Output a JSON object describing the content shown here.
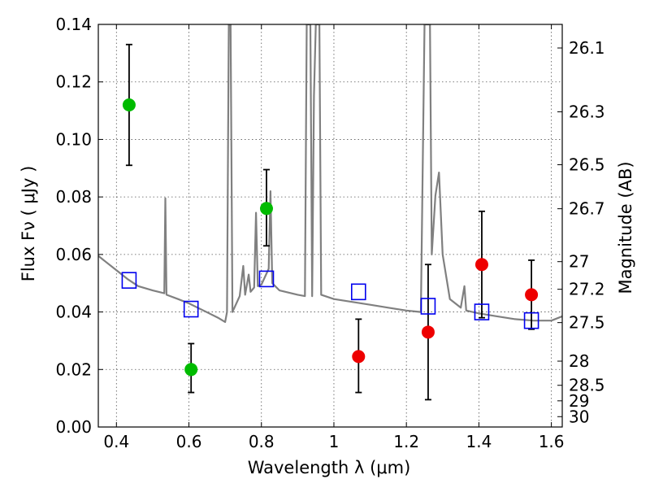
{
  "chart_data": {
    "type": "scatter",
    "xlabel": "Wavelength  λ (μm)",
    "ylabel": "Flux  Fν  ( μJy )",
    "ylabel_right": "Magnitude (AB)",
    "xlim": [
      0.35,
      1.63
    ],
    "ylim": [
      0.0,
      0.14
    ],
    "grid": true,
    "x_ticks": [
      0.4,
      0.6,
      0.8,
      1.0,
      1.2,
      1.4,
      1.6
    ],
    "x_tick_labels": [
      "0.4",
      "0.6",
      "0.8",
      "1",
      "1.2",
      "1.4",
      "1.6"
    ],
    "y_ticks": [
      0.0,
      0.02,
      0.04,
      0.06,
      0.08,
      0.1,
      0.12,
      0.14
    ],
    "y_tick_labels": [
      "0.00",
      "0.02",
      "0.04",
      "0.06",
      "0.08",
      "0.10",
      "0.12",
      "0.14"
    ],
    "right_ticks": [
      {
        "label": "26.1",
        "flux": 0.1318
      },
      {
        "label": "26.3",
        "flux": 0.1096
      },
      {
        "label": "26.5",
        "flux": 0.0912
      },
      {
        "label": "26.7",
        "flux": 0.0759
      },
      {
        "label": "27",
        "flux": 0.0575
      },
      {
        "label": "27.2",
        "flux": 0.0479
      },
      {
        "label": "27.5",
        "flux": 0.0363
      },
      {
        "label": "28",
        "flux": 0.0229
      },
      {
        "label": "28.5",
        "flux": 0.0145
      },
      {
        "label": "29",
        "flux": 0.0091
      },
      {
        "label": "30",
        "flux": 0.0036
      }
    ],
    "series": [
      {
        "color": "#00bb00",
        "marker": "circle",
        "points": [
          {
            "x": 0.435,
            "y": 0.112,
            "ylow": 0.091,
            "yhigh": 0.133
          },
          {
            "x": 0.606,
            "y": 0.02,
            "ylow": 0.012,
            "yhigh": 0.029
          },
          {
            "x": 0.814,
            "y": 0.076,
            "ylow": 0.063,
            "yhigh": 0.0895
          }
        ]
      },
      {
        "color": "#ee0000",
        "marker": "circle",
        "points": [
          {
            "x": 1.068,
            "y": 0.0245,
            "ylow": 0.012,
            "yhigh": 0.0375
          },
          {
            "x": 1.26,
            "y": 0.033,
            "ylow": 0.0095,
            "yhigh": 0.0565
          },
          {
            "x": 1.408,
            "y": 0.0565,
            "ylow": 0.038,
            "yhigh": 0.075
          },
          {
            "x": 1.545,
            "y": 0.046,
            "ylow": 0.034,
            "yhigh": 0.058
          }
        ]
      },
      {
        "color": "#0000ee",
        "marker": "open-square",
        "points": [
          {
            "x": 0.435,
            "y": 0.051
          },
          {
            "x": 0.606,
            "y": 0.041
          },
          {
            "x": 0.814,
            "y": 0.0515
          },
          {
            "x": 1.068,
            "y": 0.047
          },
          {
            "x": 1.26,
            "y": 0.042
          },
          {
            "x": 1.408,
            "y": 0.04
          },
          {
            "x": 1.545,
            "y": 0.037
          }
        ]
      }
    ],
    "model_spectrum": {
      "color": "#808080",
      "points": [
        [
          0.35,
          0.0595
        ],
        [
          0.37,
          0.0575
        ],
        [
          0.4,
          0.0545
        ],
        [
          0.43,
          0.0515
        ],
        [
          0.46,
          0.049
        ],
        [
          0.5,
          0.0475
        ],
        [
          0.532,
          0.0465
        ],
        [
          0.535,
          0.0795
        ],
        [
          0.538,
          0.046
        ],
        [
          0.57,
          0.0445
        ],
        [
          0.6,
          0.043
        ],
        [
          0.64,
          0.0405
        ],
        [
          0.68,
          0.038
        ],
        [
          0.7,
          0.0365
        ],
        [
          0.705,
          0.04
        ],
        [
          0.71,
          0.14
        ],
        [
          0.715,
          0.14
        ],
        [
          0.72,
          0.04
        ],
        [
          0.74,
          0.0455
        ],
        [
          0.75,
          0.056
        ],
        [
          0.755,
          0.046
        ],
        [
          0.765,
          0.053
        ],
        [
          0.77,
          0.047
        ],
        [
          0.78,
          0.0485
        ],
        [
          0.785,
          0.0745
        ],
        [
          0.79,
          0.049
        ],
        [
          0.8,
          0.0495
        ],
        [
          0.82,
          0.055
        ],
        [
          0.825,
          0.082
        ],
        [
          0.83,
          0.05
        ],
        [
          0.85,
          0.0475
        ],
        [
          0.9,
          0.046
        ],
        [
          0.92,
          0.0455
        ],
        [
          0.925,
          0.14
        ],
        [
          0.935,
          0.14
        ],
        [
          0.94,
          0.0455
        ],
        [
          0.945,
          0.115
        ],
        [
          0.95,
          0.14
        ],
        [
          0.96,
          0.14
        ],
        [
          0.965,
          0.046
        ],
        [
          1.0,
          0.0445
        ],
        [
          1.05,
          0.0435
        ],
        [
          1.1,
          0.0425
        ],
        [
          1.15,
          0.0415
        ],
        [
          1.2,
          0.0405
        ],
        [
          1.24,
          0.04
        ],
        [
          1.25,
          0.14
        ],
        [
          1.265,
          0.14
        ],
        [
          1.27,
          0.06
        ],
        [
          1.28,
          0.0805
        ],
        [
          1.29,
          0.0885
        ],
        [
          1.3,
          0.06
        ],
        [
          1.32,
          0.0445
        ],
        [
          1.35,
          0.0415
        ],
        [
          1.36,
          0.049
        ],
        [
          1.365,
          0.0405
        ],
        [
          1.4,
          0.0395
        ],
        [
          1.45,
          0.0385
        ],
        [
          1.5,
          0.0375
        ],
        [
          1.55,
          0.037
        ],
        [
          1.6,
          0.037
        ],
        [
          1.63,
          0.0385
        ]
      ]
    }
  }
}
